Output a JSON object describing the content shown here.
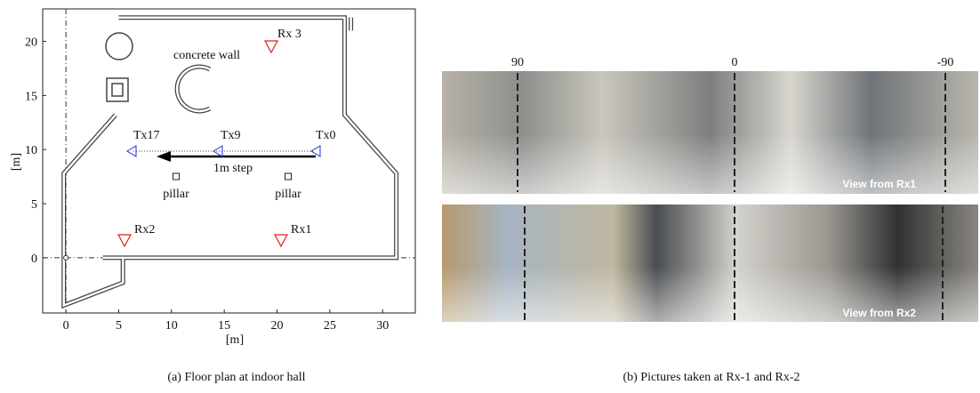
{
  "figure_a": {
    "caption": "(a) Floor plan at indoor hall",
    "xlabel": "[m]",
    "ylabel": "[m]",
    "xlim": [
      -2.2,
      33.1
    ],
    "ylim": [
      -5.1,
      23
    ],
    "xticks": [
      0,
      5,
      10,
      15,
      20,
      25,
      30
    ],
    "yticks": [
      0,
      5,
      10,
      15,
      20
    ],
    "annotations": [
      "Rx 3",
      "concrete wall",
      "Tx17",
      "Tx9",
      "Tx0",
      "1m step",
      "pillar",
      "pillar",
      "Rx2",
      "Rx1"
    ]
  },
  "figure_b": {
    "caption": "(b) Pictures taken at Rx-1 and Rx-2",
    "angle_labels": [
      90,
      0,
      -90
    ],
    "views": [
      "View from Rx1",
      "View from Rx2"
    ]
  }
}
